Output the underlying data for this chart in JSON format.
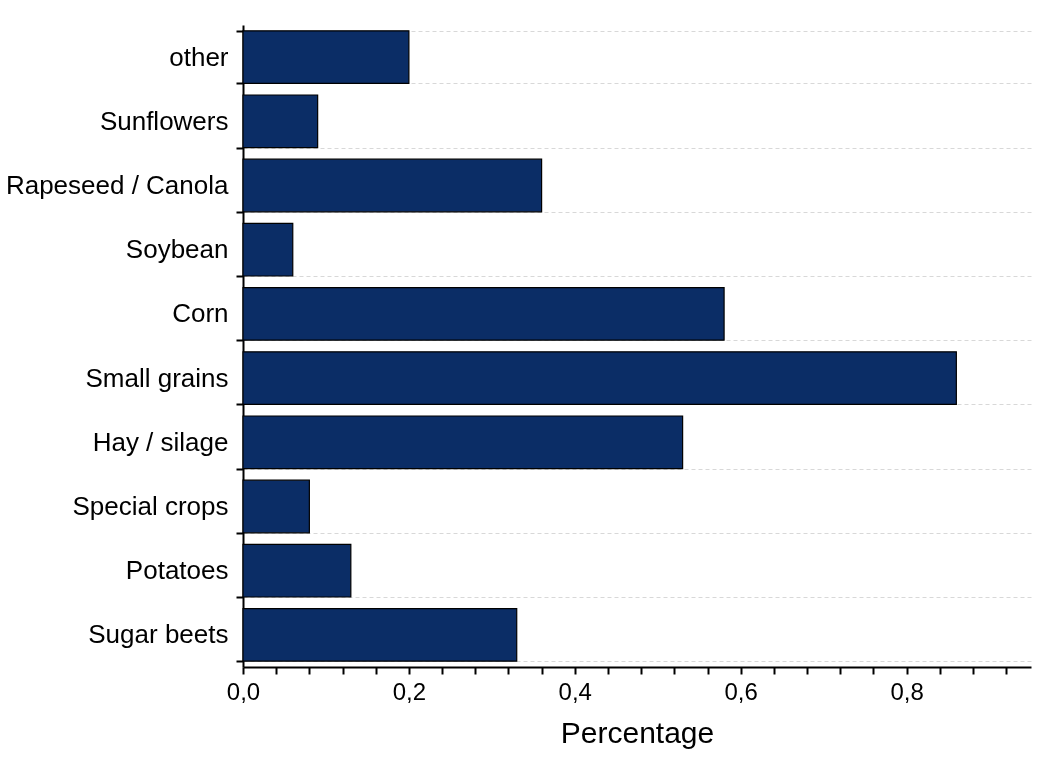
{
  "chart_data": {
    "type": "bar",
    "orientation": "horizontal",
    "xlabel": "Percentage",
    "categories": [
      "other",
      "Sunflowers",
      "Rapeseed / Canola",
      "Soybean",
      "Corn",
      "Small grains",
      "Hay / silage",
      "Special crops",
      "Potatoes",
      "Sugar beets"
    ],
    "values": [
      0.2,
      0.09,
      0.36,
      0.06,
      0.58,
      0.86,
      0.53,
      0.08,
      0.13,
      0.33
    ],
    "color": "#0b2d66",
    "xlim": [
      0,
      0.95
    ],
    "xticks": [
      {
        "value": 0,
        "label": "0,0"
      },
      {
        "value": 0.04,
        "label": null
      },
      {
        "value": 0.08,
        "label": null
      },
      {
        "value": 0.12,
        "label": null
      },
      {
        "value": 0.16,
        "label": null
      },
      {
        "value": 0.2,
        "label": "0,2"
      },
      {
        "value": 0.24,
        "label": null
      },
      {
        "value": 0.28,
        "label": null
      },
      {
        "value": 0.32,
        "label": null
      },
      {
        "value": 0.36,
        "label": null
      },
      {
        "value": 0.4,
        "label": "0,4"
      },
      {
        "value": 0.44,
        "label": null
      },
      {
        "value": 0.48,
        "label": null
      },
      {
        "value": 0.52,
        "label": null
      },
      {
        "value": 0.56,
        "label": null
      },
      {
        "value": 0.6,
        "label": "0,6"
      },
      {
        "value": 0.64,
        "label": null
      },
      {
        "value": 0.68,
        "label": null
      },
      {
        "value": 0.72,
        "label": null
      },
      {
        "value": 0.76,
        "label": null
      },
      {
        "value": 0.8,
        "label": "0,8"
      },
      {
        "value": 0.84,
        "label": null
      },
      {
        "value": 0.88,
        "label": null
      },
      {
        "value": 0.92,
        "label": null
      }
    ],
    "grid": "y"
  }
}
